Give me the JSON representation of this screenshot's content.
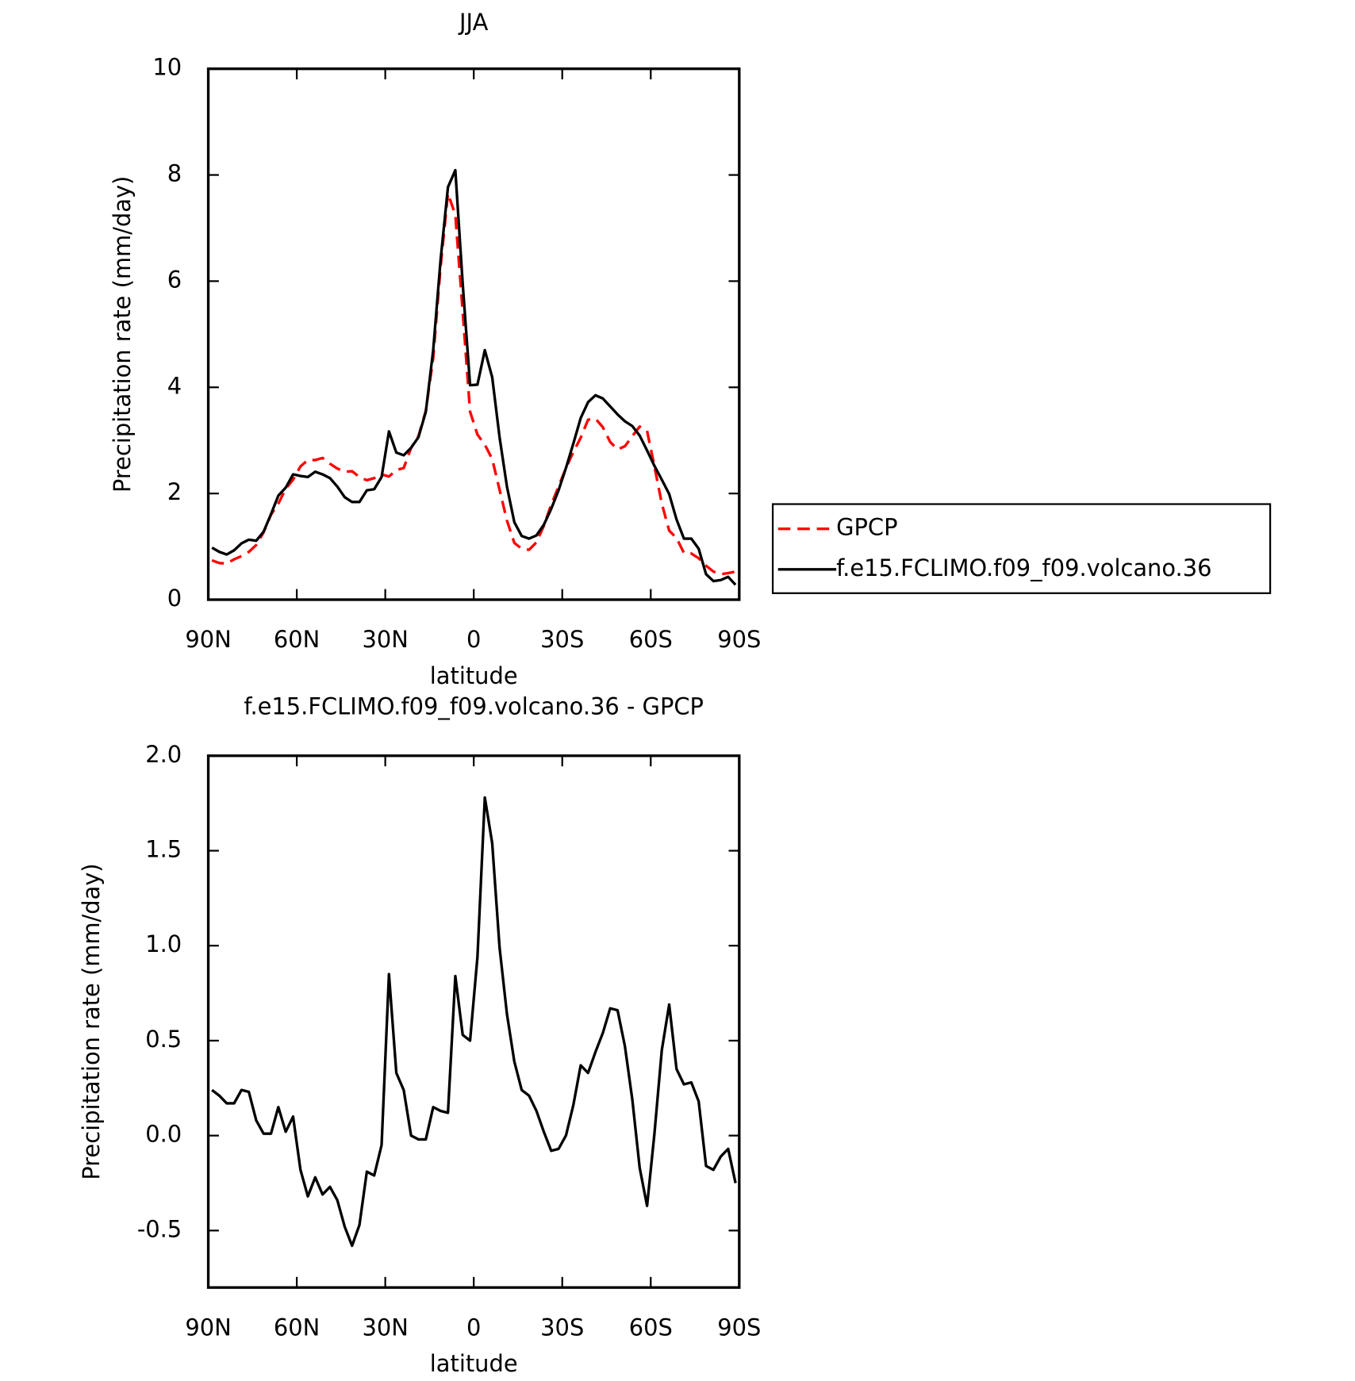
{
  "chart_data": [
    {
      "type": "line",
      "title": "JJA",
      "x_label": "latitude",
      "y_label": "Precipitation rate (mm/day)",
      "x": [
        88.75,
        86.25,
        83.75,
        81.25,
        78.75,
        76.25,
        73.75,
        71.25,
        68.75,
        66.25,
        63.75,
        61.25,
        58.75,
        56.25,
        53.75,
        51.25,
        48.75,
        46.25,
        43.75,
        41.25,
        38.75,
        36.25,
        33.75,
        31.25,
        28.75,
        26.25,
        23.75,
        21.25,
        18.75,
        16.25,
        13.75,
        11.25,
        8.75,
        6.25,
        3.75,
        1.25,
        -1.25,
        -3.75,
        -6.25,
        -8.75,
        -11.25,
        -13.75,
        -16.25,
        -18.75,
        -21.25,
        -23.75,
        -26.25,
        -28.75,
        -31.25,
        -33.75,
        -36.25,
        -38.75,
        -41.25,
        -43.75,
        -46.25,
        -48.75,
        -51.25,
        -53.75,
        -56.25,
        -58.75,
        -61.25,
        -63.75,
        -66.25,
        -68.75,
        -71.25,
        -73.75,
        -76.25,
        -78.75,
        -81.25,
        -83.75,
        -86.25,
        -88.75
      ],
      "series": [
        {
          "name": "GPCP",
          "color": "#ff0000",
          "line_style": "dashed",
          "values": [
            0.74,
            0.69,
            0.68,
            0.76,
            0.82,
            0.9,
            1.03,
            1.27,
            1.6,
            1.81,
            2.09,
            2.26,
            2.51,
            2.63,
            2.63,
            2.67,
            2.56,
            2.47,
            2.41,
            2.42,
            2.31,
            2.25,
            2.29,
            2.36,
            2.32,
            2.44,
            2.48,
            2.86,
            3.08,
            3.56,
            4.55,
            6.27,
            7.65,
            7.25,
            5.42,
            3.54,
            3.11,
            2.92,
            2.65,
            2.07,
            1.49,
            1.07,
            0.96,
            0.94,
            1.08,
            1.39,
            1.79,
            2.13,
            2.48,
            2.78,
            3.05,
            3.39,
            3.41,
            3.25,
            2.97,
            2.83,
            2.89,
            3.08,
            3.26,
            3.18,
            2.51,
            1.81,
            1.3,
            1.16,
            0.88,
            0.87,
            0.78,
            0.64,
            0.53,
            0.48,
            0.5,
            0.53
          ]
        },
        {
          "name": "f.e15.FCLIMO.f09_f09.volcano.36",
          "color": "#000000",
          "line_style": "solid",
          "values": [
            0.98,
            0.9,
            0.85,
            0.93,
            1.06,
            1.13,
            1.11,
            1.28,
            1.61,
            1.96,
            2.11,
            2.36,
            2.33,
            2.31,
            2.41,
            2.36,
            2.29,
            2.13,
            1.93,
            1.84,
            1.84,
            2.06,
            2.08,
            2.31,
            3.17,
            2.77,
            2.72,
            2.86,
            3.06,
            3.54,
            4.7,
            6.4,
            7.77,
            8.09,
            5.95,
            4.04,
            4.05,
            4.7,
            4.19,
            3.06,
            2.13,
            1.46,
            1.2,
            1.15,
            1.21,
            1.41,
            1.71,
            2.06,
            2.48,
            2.94,
            3.42,
            3.72,
            3.85,
            3.79,
            3.64,
            3.49,
            3.36,
            3.27,
            3.09,
            2.81,
            2.52,
            2.26,
            1.99,
            1.51,
            1.15,
            1.15,
            0.96,
            0.48,
            0.35,
            0.37,
            0.43,
            0.28
          ]
        }
      ],
      "xlim": [
        90,
        -90
      ],
      "xticks": [
        {
          "value": 90,
          "label": "90N"
        },
        {
          "value": 60,
          "label": "60N"
        },
        {
          "value": 30,
          "label": "30N"
        },
        0,
        {
          "value": -30,
          "label": "30S"
        },
        {
          "value": -60,
          "label": "60S"
        },
        {
          "value": -90,
          "label": "90S"
        }
      ],
      "ylim": [
        0,
        10
      ],
      "yticks": [
        0,
        2,
        4,
        6,
        8,
        10
      ],
      "legend": "right"
    },
    {
      "type": "line",
      "title": "f.e15.FCLIMO.f09_f09.volcano.36 - GPCP",
      "x_label": "latitude",
      "y_label": "Precipitation rate (mm/day)",
      "x": [
        88.75,
        86.25,
        83.75,
        81.25,
        78.75,
        76.25,
        73.75,
        71.25,
        68.75,
        66.25,
        63.75,
        61.25,
        58.75,
        56.25,
        53.75,
        51.25,
        48.75,
        46.25,
        43.75,
        41.25,
        38.75,
        36.25,
        33.75,
        31.25,
        28.75,
        26.25,
        23.75,
        21.25,
        18.75,
        16.25,
        13.75,
        11.25,
        8.75,
        6.25,
        3.75,
        1.25,
        -1.25,
        -3.75,
        -6.25,
        -8.75,
        -11.25,
        -13.75,
        -16.25,
        -18.75,
        -21.25,
        -23.75,
        -26.25,
        -28.75,
        -31.25,
        -33.75,
        -36.25,
        -38.75,
        -41.25,
        -43.75,
        -46.25,
        -48.75,
        -51.25,
        -53.75,
        -56.25,
        -58.75,
        -61.25,
        -63.75,
        -66.25,
        -68.75,
        -71.25,
        -73.75,
        -76.25,
        -78.75,
        -81.25,
        -83.75,
        -86.25,
        -88.75
      ],
      "color": "#000000",
      "values": [
        0.24,
        0.21,
        0.17,
        0.17,
        0.24,
        0.23,
        0.08,
        0.01,
        0.01,
        0.15,
        0.02,
        0.1,
        -0.18,
        -0.32,
        -0.22,
        -0.31,
        -0.27,
        -0.34,
        -0.48,
        -0.58,
        -0.47,
        -0.19,
        -0.21,
        -0.05,
        0.85,
        0.33,
        0.24,
        0.0,
        -0.02,
        -0.02,
        0.15,
        0.13,
        0.12,
        0.84,
        0.53,
        0.5,
        0.94,
        1.78,
        1.54,
        0.99,
        0.64,
        0.39,
        0.24,
        0.21,
        0.13,
        0.02,
        -0.08,
        -0.07,
        0.0,
        0.16,
        0.37,
        0.33,
        0.44,
        0.54,
        0.67,
        0.66,
        0.47,
        0.19,
        -0.17,
        -0.37,
        0.01,
        0.45,
        0.69,
        0.35,
        0.27,
        0.28,
        0.18,
        -0.16,
        -0.18,
        -0.11,
        -0.07,
        -0.25
      ],
      "xlim": [
        90,
        -90
      ],
      "xticks": [
        {
          "value": 90,
          "label": "90N"
        },
        {
          "value": 60,
          "label": "60N"
        },
        {
          "value": 30,
          "label": "30N"
        },
        0,
        {
          "value": -30,
          "label": "30S"
        },
        {
          "value": -60,
          "label": "60S"
        },
        {
          "value": -90,
          "label": "90S"
        }
      ],
      "ylim": [
        -0.8,
        2.0
      ],
      "yticks": [
        {
          "value": -0.5,
          "label": "-0.5"
        },
        {
          "value": 0,
          "label": "0.0"
        },
        {
          "value": 0.5,
          "label": "0.5"
        },
        {
          "value": 1,
          "label": "1.0"
        },
        {
          "value": 1.5,
          "label": "1.5"
        },
        {
          "value": 2,
          "label": "2.0"
        }
      ]
    }
  ]
}
